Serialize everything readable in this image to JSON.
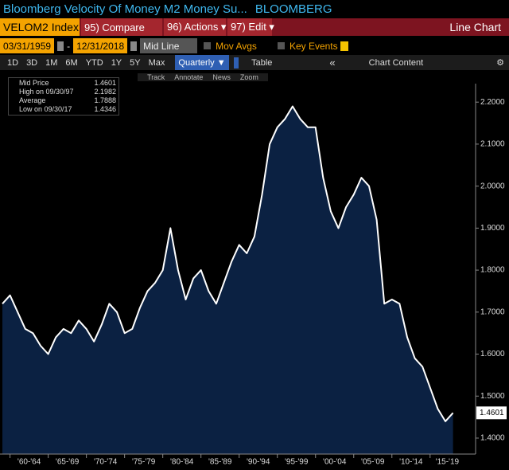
{
  "ui": {
    "title": "Bloomberg Velocity Of Money M2 Money Su...",
    "source": "BLOOMBERG",
    "ticker": "VELOM2 Index",
    "menu": [
      "95) Compare",
      "96) Actions ▾",
      "97) Edit ▾"
    ],
    "view": "Line Chart",
    "start_date": "03/31/1959",
    "dash": "-",
    "end_date": "12/31/2018",
    "line_mode": "Mid Line",
    "mov_avgs": "Mov Avgs",
    "key_events": "Key Events",
    "ranges": [
      "1D",
      "3D",
      "1M",
      "6M",
      "YTD",
      "1Y",
      "5Y",
      "Max"
    ],
    "period": "Quarterly ▼",
    "table": "Table",
    "collapse": "«",
    "chart_content": "Chart Content",
    "tools": [
      "Track",
      "Annotate",
      "News",
      "Zoom"
    ]
  },
  "chart_data": {
    "type": "area",
    "series": [
      {
        "name": "Mid Price",
        "color": "#ffffff",
        "fill": "#0b2142",
        "values": [
          1.72,
          1.74,
          1.7,
          1.66,
          1.65,
          1.62,
          1.6,
          1.64,
          1.66,
          1.65,
          1.68,
          1.66,
          1.63,
          1.67,
          1.72,
          1.7,
          1.65,
          1.66,
          1.71,
          1.75,
          1.77,
          1.8,
          1.9,
          1.8,
          1.73,
          1.78,
          1.8,
          1.75,
          1.72,
          1.77,
          1.82,
          1.86,
          1.84,
          1.88,
          1.98,
          2.1,
          2.14,
          2.16,
          2.19,
          2.16,
          2.14,
          2.14,
          2.02,
          1.94,
          1.9,
          1.95,
          1.98,
          2.02,
          2.0,
          1.92,
          1.72,
          1.73,
          1.72,
          1.64,
          1.59,
          1.57,
          1.52,
          1.47,
          1.44,
          1.46
        ]
      }
    ],
    "x": [
      1959,
      1960,
      1961,
      1962,
      1963,
      1964,
      1965,
      1966,
      1967,
      1968,
      1969,
      1970,
      1971,
      1972,
      1973,
      1974,
      1975,
      1976,
      1977,
      1978,
      1979,
      1980,
      1981,
      1982,
      1983,
      1984,
      1985,
      1986,
      1987,
      1988,
      1989,
      1990,
      1991,
      1992,
      1993,
      1994,
      1995,
      1996,
      1997,
      1998,
      1999,
      2000,
      2001,
      2002,
      2003,
      2004,
      2005,
      2006,
      2007,
      2008,
      2009,
      2010,
      2011,
      2012,
      2013,
      2014,
      2015,
      2016,
      2017,
      2018
    ],
    "xlim": [
      1959,
      2019.5
    ],
    "xticks": [
      {
        "value": 1960,
        "label": "'60-'64"
      },
      {
        "value": 1965,
        "label": "'65-'69"
      },
      {
        "value": 1970,
        "label": "'70-'74"
      },
      {
        "value": 1975,
        "label": "'75-'79"
      },
      {
        "value": 1980,
        "label": "'80-'84"
      },
      {
        "value": 1985,
        "label": "'85-'89"
      },
      {
        "value": 1990,
        "label": "'90-'94"
      },
      {
        "value": 1995,
        "label": "'95-'99"
      },
      {
        "value": 2000,
        "label": "'00-'04"
      },
      {
        "value": 2005,
        "label": "'05-'09"
      },
      {
        "value": 2010,
        "label": "'10-'14"
      },
      {
        "value": 2015,
        "label": "'15-'19"
      }
    ],
    "ylim": [
      1.362,
      2.244
    ],
    "yticks": [
      {
        "value": 1.4,
        "label": "1.4000"
      },
      {
        "value": 1.5,
        "label": "1.5000"
      },
      {
        "value": 1.6,
        "label": "1.6000"
      },
      {
        "value": 1.7,
        "label": "1.7000"
      },
      {
        "value": 1.8,
        "label": "1.8000"
      },
      {
        "value": 1.9,
        "label": "1.9000"
      },
      {
        "value": 2.0,
        "label": "2.0000"
      },
      {
        "value": 2.1,
        "label": "2.1000"
      },
      {
        "value": 2.2,
        "label": "2.2000"
      }
    ],
    "legend": [
      {
        "label": "Mid Price",
        "value": "1.4601"
      },
      {
        "label": "High on 09/30/97",
        "value": "2.1982"
      },
      {
        "label": "Average",
        "value": "1.7888"
      },
      {
        "label": "Low on 09/30/17",
        "value": "1.4346"
      }
    ],
    "last_value": 1.4601
  }
}
